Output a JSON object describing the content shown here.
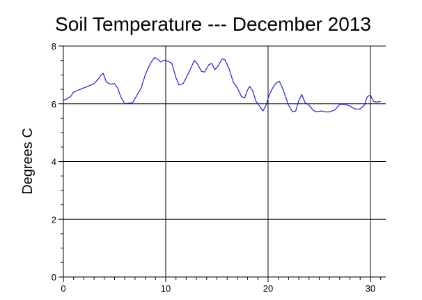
{
  "chart_data": {
    "type": "line",
    "title": "Soil Temperature --- December 2013",
    "xlabel": "",
    "ylabel": "Degrees C",
    "xlim": [
      0,
      31.5
    ],
    "ylim": [
      0,
      8
    ],
    "xticks": [
      0,
      10,
      20,
      30
    ],
    "yticks": [
      0,
      2,
      4,
      6,
      8
    ],
    "grid": true,
    "colors": {
      "line": "#1f1fd0",
      "grid": "#000000",
      "axis": "#000000"
    },
    "series": [
      {
        "values": [
          [
            0.0,
            6.12
          ],
          [
            0.4,
            6.18
          ],
          [
            0.7,
            6.25
          ],
          [
            1.0,
            6.4
          ],
          [
            1.5,
            6.48
          ],
          [
            2.0,
            6.55
          ],
          [
            2.5,
            6.62
          ],
          [
            3.0,
            6.7
          ],
          [
            3.4,
            6.85
          ],
          [
            3.7,
            7.0
          ],
          [
            3.9,
            7.05
          ],
          [
            4.2,
            6.75
          ],
          [
            4.6,
            6.68
          ],
          [
            5.0,
            6.7
          ],
          [
            5.3,
            6.55
          ],
          [
            5.6,
            6.25
          ],
          [
            6.0,
            6.0
          ],
          [
            6.4,
            6.02
          ],
          [
            6.8,
            6.05
          ],
          [
            7.2,
            6.3
          ],
          [
            7.6,
            6.55
          ],
          [
            8.0,
            7.0
          ],
          [
            8.3,
            7.25
          ],
          [
            8.6,
            7.45
          ],
          [
            8.9,
            7.6
          ],
          [
            9.2,
            7.55
          ],
          [
            9.5,
            7.45
          ],
          [
            9.8,
            7.5
          ],
          [
            10.2,
            7.48
          ],
          [
            10.6,
            7.4
          ],
          [
            11.0,
            6.9
          ],
          [
            11.3,
            6.65
          ],
          [
            11.7,
            6.7
          ],
          [
            12.0,
            6.9
          ],
          [
            12.4,
            7.2
          ],
          [
            12.8,
            7.5
          ],
          [
            13.1,
            7.38
          ],
          [
            13.5,
            7.12
          ],
          [
            13.8,
            7.1
          ],
          [
            14.2,
            7.35
          ],
          [
            14.5,
            7.4
          ],
          [
            14.8,
            7.18
          ],
          [
            15.1,
            7.3
          ],
          [
            15.5,
            7.55
          ],
          [
            15.8,
            7.52
          ],
          [
            16.2,
            7.2
          ],
          [
            16.6,
            6.75
          ],
          [
            17.0,
            6.55
          ],
          [
            17.4,
            6.25
          ],
          [
            17.7,
            6.2
          ],
          [
            18.0,
            6.48
          ],
          [
            18.2,
            6.6
          ],
          [
            18.5,
            6.45
          ],
          [
            18.8,
            6.1
          ],
          [
            19.1,
            5.95
          ],
          [
            19.5,
            5.75
          ],
          [
            19.8,
            5.95
          ],
          [
            20.1,
            6.3
          ],
          [
            20.5,
            6.58
          ],
          [
            20.8,
            6.72
          ],
          [
            21.1,
            6.78
          ],
          [
            21.4,
            6.55
          ],
          [
            21.7,
            6.25
          ],
          [
            22.0,
            5.95
          ],
          [
            22.4,
            5.72
          ],
          [
            22.7,
            5.75
          ],
          [
            23.0,
            6.1
          ],
          [
            23.3,
            6.32
          ],
          [
            23.6,
            6.05
          ],
          [
            24.0,
            5.95
          ],
          [
            24.4,
            5.78
          ],
          [
            24.7,
            5.72
          ],
          [
            25.2,
            5.75
          ],
          [
            25.6,
            5.72
          ],
          [
            26.0,
            5.72
          ],
          [
            26.5,
            5.78
          ],
          [
            27.0,
            5.98
          ],
          [
            27.5,
            5.98
          ],
          [
            28.0,
            5.92
          ],
          [
            28.5,
            5.82
          ],
          [
            29.0,
            5.82
          ],
          [
            29.4,
            5.95
          ],
          [
            29.7,
            6.25
          ],
          [
            30.0,
            6.3
          ],
          [
            30.3,
            6.08
          ],
          [
            30.6,
            6.06
          ],
          [
            31.0,
            6.08
          ]
        ]
      }
    ]
  }
}
